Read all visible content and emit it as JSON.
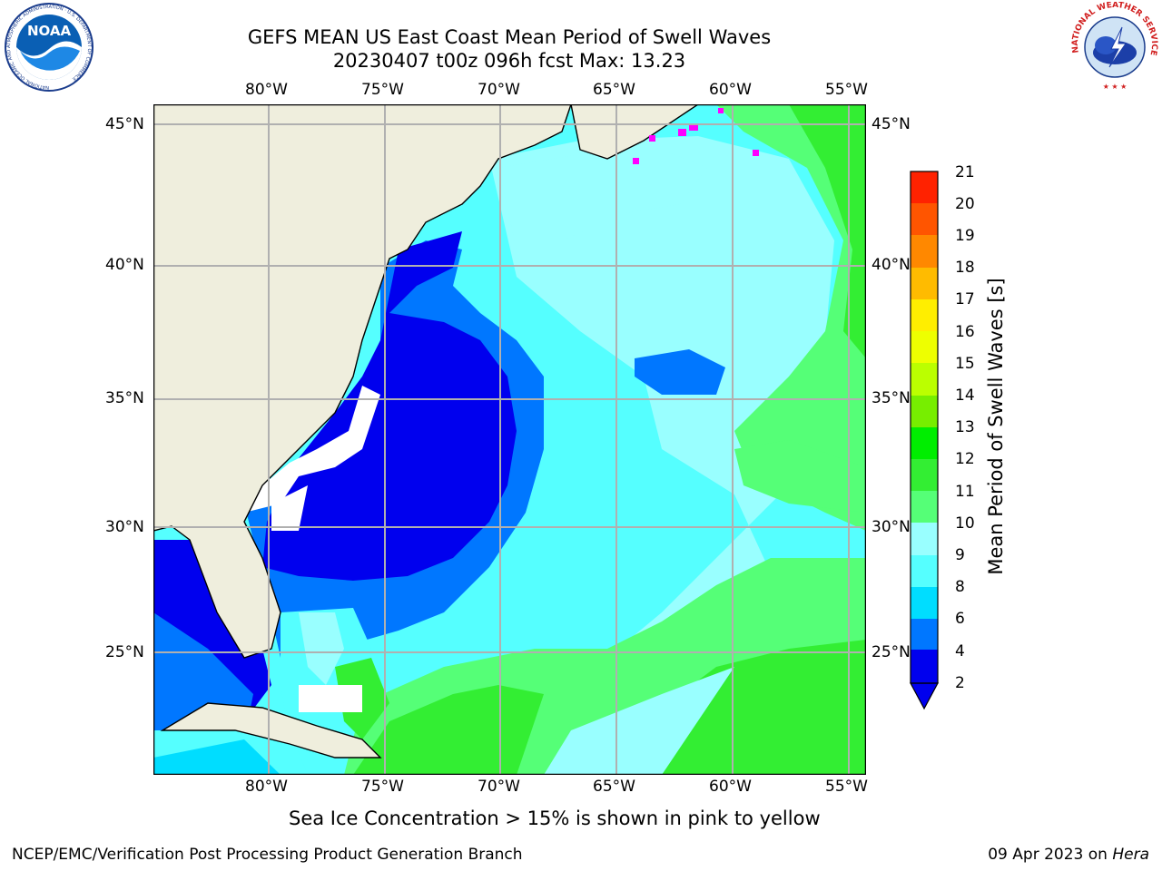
{
  "header": {
    "title_line1": "GEFS MEAN US East Coast Mean Period of Swell Waves",
    "title_line2": "20230407 t00z 096h fcst   Max: 13.23"
  },
  "logos": {
    "noaa_text": "NOAA",
    "noaa_ring": "NATIONAL OCEANIC AND ATMOSPHERIC ADMINISTRATION · U.S. DEPARTMENT OF COMMERCE",
    "nws_ring": "NATIONAL WEATHER SERVICE"
  },
  "map": {
    "lon_labels": [
      "80°W",
      "75°W",
      "70°W",
      "65°W",
      "60°W",
      "55°W"
    ],
    "lat_labels": [
      "45°N",
      "40°N",
      "35°N",
      "30°N",
      "25°N"
    ],
    "colors": {
      "land": "#efeedd",
      "grid": "#b0b0b0",
      "ice": "#ff00ff"
    }
  },
  "colorbar": {
    "label": "Mean Period of Swell Waves [s]",
    "ticks": [
      "21",
      "20",
      "19",
      "18",
      "17",
      "16",
      "15",
      "14",
      "13",
      "12",
      "11",
      "10",
      "9",
      "8",
      "6",
      "4",
      "2"
    ],
    "colors": [
      "#0000ee",
      "#0077ff",
      "#00ddff",
      "#55ffff",
      "#99ffff",
      "#55ff77",
      "#33ee33",
      "#00ee00",
      "#77ee00",
      "#bbff00",
      "#eeff00",
      "#ffee00",
      "#ffbb00",
      "#ff8800",
      "#ff5500",
      "#ff2200",
      "#ff0000"
    ]
  },
  "caption": "Sea Ice Concentration > 15% is shown in pink to yellow",
  "footer": {
    "left": "NCEP/EMC/Verification Post Processing Product Generation Branch",
    "date": "09 Apr 2023 on ",
    "machine": "Hera"
  }
}
